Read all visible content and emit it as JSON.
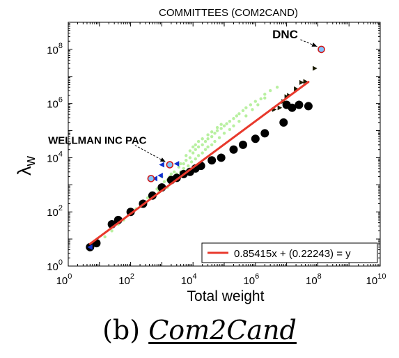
{
  "chart_data": {
    "type": "scatter",
    "title": "COMMITTEES (COM2CAND)",
    "xlabel": "Total weight",
    "ylabel": "λ",
    "ylabel_sub": "w",
    "x_scale": "log",
    "y_scale": "log",
    "xlim": [
      1,
      10000000000
    ],
    "ylim": [
      1,
      1000000000
    ],
    "x_ticks": [
      {
        "value": 1,
        "base": "10",
        "exp": "0"
      },
      {
        "value": 100,
        "base": "10",
        "exp": "2"
      },
      {
        "value": 10000,
        "base": "10",
        "exp": "4"
      },
      {
        "value": 1000000,
        "base": "10",
        "exp": "6"
      },
      {
        "value": 100000000,
        "base": "10",
        "exp": "8"
      },
      {
        "value": 10000000000,
        "base": "10",
        "exp": "10"
      }
    ],
    "y_ticks": [
      {
        "value": 1,
        "base": "10",
        "exp": "0"
      },
      {
        "value": 100,
        "base": "10",
        "exp": "2"
      },
      {
        "value": 10000,
        "base": "10",
        "exp": "4"
      },
      {
        "value": 1000000,
        "base": "10",
        "exp": "6"
      },
      {
        "value": 100000000,
        "base": "10",
        "exp": "8"
      }
    ],
    "grid": false,
    "legend": {
      "position": "bottom-right",
      "entries": [
        "0.85415x + (0.22243) = y"
      ],
      "color": "#e8392c"
    },
    "series": [
      {
        "marker": "green-dots",
        "color": "#b8f0a0",
        "points": [
          [
            9,
            7
          ],
          [
            15,
            12
          ],
          [
            25,
            20
          ],
          [
            40,
            35
          ],
          [
            60,
            50
          ],
          [
            90,
            80
          ],
          [
            150,
            130
          ],
          [
            220,
            200
          ],
          [
            350,
            330
          ],
          [
            500,
            480
          ],
          [
            700,
            700
          ],
          [
            900,
            900
          ],
          [
            1200,
            1300
          ],
          [
            1500,
            1500
          ],
          [
            1800,
            2000
          ],
          [
            2500,
            3000
          ],
          [
            3000,
            2500
          ],
          [
            3500,
            4500
          ],
          [
            4000,
            3000
          ],
          [
            5000,
            6000
          ],
          [
            5000,
            4000
          ],
          [
            6000,
            8000
          ],
          [
            7000,
            5000
          ],
          [
            8000,
            10000
          ],
          [
            9000,
            7000
          ],
          [
            10000,
            15000
          ],
          [
            12000,
            9000
          ],
          [
            12000,
            20000
          ],
          [
            15000,
            25000
          ],
          [
            15000,
            12000
          ],
          [
            20000,
            30000
          ],
          [
            20000,
            15000
          ],
          [
            25000,
            40000
          ],
          [
            25000,
            20000
          ],
          [
            30000,
            50000
          ],
          [
            30000,
            25000
          ],
          [
            40000,
            60000
          ],
          [
            40000,
            30000
          ],
          [
            50000,
            80000
          ],
          [
            50000,
            40000
          ],
          [
            60000,
            100000
          ],
          [
            70000,
            55000
          ],
          [
            80000,
            120000
          ],
          [
            100000,
            150000
          ],
          [
            100000,
            80000
          ],
          [
            120000,
            180000
          ],
          [
            150000,
            220000
          ],
          [
            150000,
            110000
          ],
          [
            200000,
            280000
          ],
          [
            200000,
            150000
          ],
          [
            250000,
            350000
          ],
          [
            300000,
            420000
          ],
          [
            300000,
            220000
          ],
          [
            400000,
            550000
          ],
          [
            500000,
            700000
          ],
          [
            500000,
            350000
          ],
          [
            700000,
            900000
          ],
          [
            800000,
            600000
          ],
          [
            1000000,
            1200000
          ],
          [
            1200000,
            900000
          ],
          [
            1500000,
            1500000
          ],
          [
            2000000,
            2200000
          ],
          [
            2000000,
            1600000
          ],
          [
            3000000,
            3000000
          ],
          [
            5000000,
            4000000
          ],
          [
            1500,
            800
          ],
          [
            2000,
            1200
          ],
          [
            3000,
            2000
          ],
          [
            4000,
            6000
          ],
          [
            6000,
            12000
          ],
          [
            8000,
            18000
          ],
          [
            10000,
            25000
          ],
          [
            12000,
            30000
          ],
          [
            15000,
            40000
          ],
          [
            20000,
            50000
          ],
          [
            30000,
            70000
          ],
          [
            40000,
            90000
          ],
          [
            60000,
            130000
          ],
          [
            80000,
            170000
          ],
          [
            1000,
            2000
          ],
          [
            2000,
            2500
          ],
          [
            2500,
            1500
          ],
          [
            600,
            400
          ],
          [
            800,
            600
          ],
          [
            3500,
            1800
          ]
        ]
      },
      {
        "marker": "black-circle",
        "color": "#000000",
        "points": [
          [
            5,
            5
          ],
          [
            8,
            7
          ],
          [
            25,
            35
          ],
          [
            40,
            50
          ],
          [
            100,
            100
          ],
          [
            250,
            200
          ],
          [
            500,
            400
          ],
          [
            1000,
            800
          ],
          [
            2000,
            1500
          ],
          [
            3000,
            1800
          ],
          [
            5000,
            2500
          ],
          [
            8000,
            3000
          ],
          [
            12000,
            4000
          ],
          [
            18000,
            5000
          ],
          [
            40000,
            8000
          ],
          [
            80000,
            10000
          ],
          [
            200000,
            20000
          ],
          [
            400000,
            30000
          ],
          [
            1000000,
            50000
          ],
          [
            2000000,
            80000
          ],
          [
            8000000,
            200000
          ],
          [
            15000000,
            700000
          ],
          [
            25000000,
            900000
          ],
          [
            50000000,
            800000
          ],
          [
            10000000,
            900000
          ]
        ]
      },
      {
        "marker": "black-triangle",
        "color": "#1a1a00",
        "points": [
          [
            4000000,
            600000
          ],
          [
            6000000,
            700000
          ],
          [
            8000000,
            1200000
          ],
          [
            10000000,
            1800000
          ],
          [
            12000000,
            2000000
          ],
          [
            20000000,
            3500000
          ],
          [
            30000000,
            6000000
          ],
          [
            40000000,
            6500000
          ],
          [
            80000000,
            20000000
          ]
        ]
      },
      {
        "marker": "blue-triangle",
        "color": "#1030d0",
        "points": [
          [
            1000,
            5500
          ],
          [
            3000,
            6000
          ],
          [
            600,
            1700
          ],
          [
            900,
            2200
          ],
          [
            5,
            5
          ]
        ]
      },
      {
        "marker": "red-circle-highlight",
        "color": "#d01818",
        "points": [
          [
            1800,
            5500
          ],
          [
            450,
            1700
          ],
          [
            130000000,
            100000000
          ]
        ]
      }
    ],
    "fit_line": {
      "slope": 0.85415,
      "intercept": 0.22243,
      "x_range": [
        5,
        50000000
      ],
      "color": "#e8392c"
    },
    "annotations": [
      {
        "text": "DNC",
        "x": 130000000,
        "y": 100000000
      },
      {
        "text": "WELLMAN INC PAC",
        "x": 1800,
        "y": 5500
      }
    ]
  },
  "caption": {
    "label": "(b)",
    "name": "Com2Cand"
  }
}
